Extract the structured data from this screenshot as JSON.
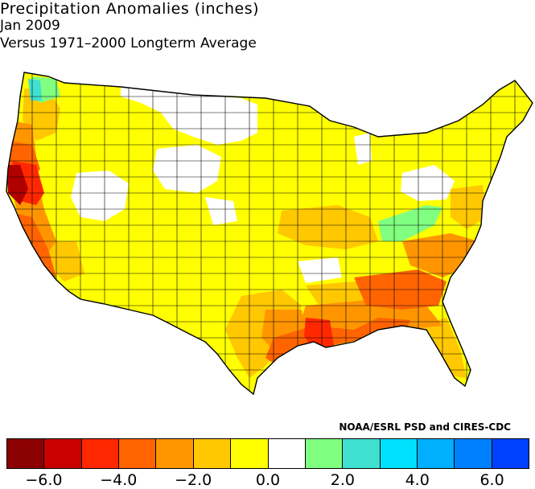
{
  "title": "Precipitation Anomalies (inches)",
  "subtitle": "Jan 2009",
  "subtitle2": "Versus 1971–2000 Longterm Average",
  "credit": "NOAA/ESRL PSD and CIRES-CDC",
  "legend": {
    "colors": [
      "#8b0000",
      "#c80000",
      "#ff2800",
      "#ff6400",
      "#ff9600",
      "#ffc800",
      "#ffff00",
      "#ffffff",
      "#80ff80",
      "#40e0d0",
      "#00e0ff",
      "#00b0ff",
      "#0080ff",
      "#0040ff"
    ],
    "ticks": [
      "−6.0",
      "−4.0",
      "−2.0",
      "0.0",
      "2.0",
      "4.0",
      "6.0"
    ]
  },
  "palette": {
    "dark_red": "#b00000",
    "red": "#ff2800",
    "orange_red": "#ff6400",
    "orange": "#ff9600",
    "light_orange": "#ffc800",
    "yellow": "#ffff00",
    "white": "#ffffff",
    "green": "#80ff80",
    "teal": "#40e0d0"
  }
}
